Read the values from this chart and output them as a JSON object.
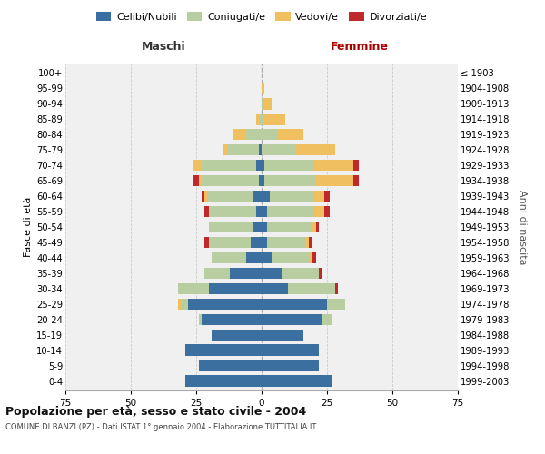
{
  "age_groups_bottom_to_top": [
    "0-4",
    "5-9",
    "10-14",
    "15-19",
    "20-24",
    "25-29",
    "30-34",
    "35-39",
    "40-44",
    "45-49",
    "50-54",
    "55-59",
    "60-64",
    "65-69",
    "70-74",
    "75-79",
    "80-84",
    "85-89",
    "90-94",
    "95-99",
    "100+"
  ],
  "birth_years_bottom_to_top": [
    "1999-2003",
    "1994-1998",
    "1989-1993",
    "1984-1988",
    "1979-1983",
    "1974-1978",
    "1969-1973",
    "1964-1968",
    "1959-1963",
    "1954-1958",
    "1949-1953",
    "1944-1948",
    "1939-1943",
    "1934-1938",
    "1929-1933",
    "1924-1928",
    "1919-1923",
    "1914-1918",
    "1909-1913",
    "1904-1908",
    "≤ 1903"
  ],
  "maschi": {
    "celibi": [
      29,
      24,
      29,
      19,
      23,
      28,
      20,
      12,
      6,
      4,
      3,
      2,
      3,
      1,
      2,
      1,
      0,
      0,
      0,
      0,
      0
    ],
    "coniugati": [
      0,
      0,
      0,
      0,
      1,
      3,
      12,
      10,
      13,
      16,
      17,
      18,
      18,
      22,
      21,
      12,
      6,
      1,
      0,
      0,
      0
    ],
    "vedovi": [
      0,
      0,
      0,
      0,
      0,
      1,
      0,
      0,
      0,
      0,
      0,
      0,
      1,
      1,
      3,
      2,
      5,
      1,
      0,
      0,
      0
    ],
    "divorziati": [
      0,
      0,
      0,
      0,
      0,
      0,
      0,
      0,
      0,
      2,
      0,
      2,
      1,
      2,
      0,
      0,
      0,
      0,
      0,
      0,
      0
    ]
  },
  "femmine": {
    "nubili": [
      27,
      22,
      22,
      16,
      23,
      25,
      10,
      8,
      4,
      2,
      2,
      2,
      3,
      1,
      1,
      0,
      0,
      0,
      0,
      0,
      0
    ],
    "coniugate": [
      0,
      0,
      0,
      0,
      4,
      7,
      18,
      14,
      14,
      15,
      17,
      18,
      17,
      20,
      19,
      13,
      6,
      1,
      1,
      0,
      0
    ],
    "vedove": [
      0,
      0,
      0,
      0,
      0,
      0,
      0,
      0,
      1,
      1,
      2,
      4,
      4,
      14,
      15,
      15,
      10,
      8,
      3,
      1,
      0
    ],
    "divorziate": [
      0,
      0,
      0,
      0,
      0,
      0,
      1,
      1,
      2,
      1,
      1,
      2,
      2,
      2,
      2,
      0,
      0,
      0,
      0,
      0,
      0
    ]
  },
  "colors": {
    "celibi": "#3b6fa0",
    "coniugati": "#b8cda0",
    "vedovi": "#f0c060",
    "divorziati": "#c0292b"
  },
  "xlim": 75,
  "title": "Popolazione per età, sesso e stato civile - 2004",
  "subtitle": "COMUNE DI BANZI (PZ) - Dati ISTAT 1° gennaio 2004 - Elaborazione TUTTITALIA.IT",
  "ylabel_left": "Fasce di età",
  "ylabel_right": "Anni di nascita",
  "xlabel_left": "Maschi",
  "xlabel_right": "Femmine"
}
